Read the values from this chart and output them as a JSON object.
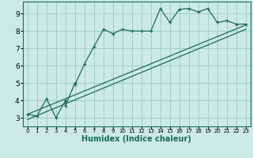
{
  "xlabel": "Humidex (Indice chaleur)",
  "xlim": [
    -0.5,
    23.5
  ],
  "ylim": [
    2.5,
    9.7
  ],
  "xticks": [
    0,
    1,
    2,
    3,
    4,
    5,
    6,
    7,
    8,
    9,
    10,
    11,
    12,
    13,
    14,
    15,
    16,
    17,
    18,
    19,
    20,
    21,
    22,
    23
  ],
  "yticks": [
    3,
    4,
    5,
    6,
    7,
    8,
    9
  ],
  "bg_color": "#cceae4",
  "line_color": "#1a6b5a",
  "grid_color": "#9ecfc5",
  "main_x": [
    0,
    1,
    2,
    3,
    4,
    4,
    5,
    5,
    6,
    7,
    8,
    9,
    10,
    11,
    12,
    13,
    14,
    15,
    16,
    17,
    18,
    19,
    20,
    21,
    22,
    23
  ],
  "main_y": [
    3.2,
    3.1,
    4.1,
    3.0,
    4.0,
    3.7,
    5.0,
    4.9,
    6.1,
    7.1,
    8.1,
    7.85,
    8.1,
    8.0,
    8.0,
    8.0,
    9.3,
    8.5,
    9.25,
    9.3,
    9.1,
    9.3,
    8.5,
    8.6,
    8.4,
    8.4
  ],
  "line1_x": [
    0,
    23
  ],
  "line1_y": [
    3.2,
    8.35
  ],
  "line2_x": [
    0,
    23
  ],
  "line2_y": [
    2.9,
    8.1
  ]
}
